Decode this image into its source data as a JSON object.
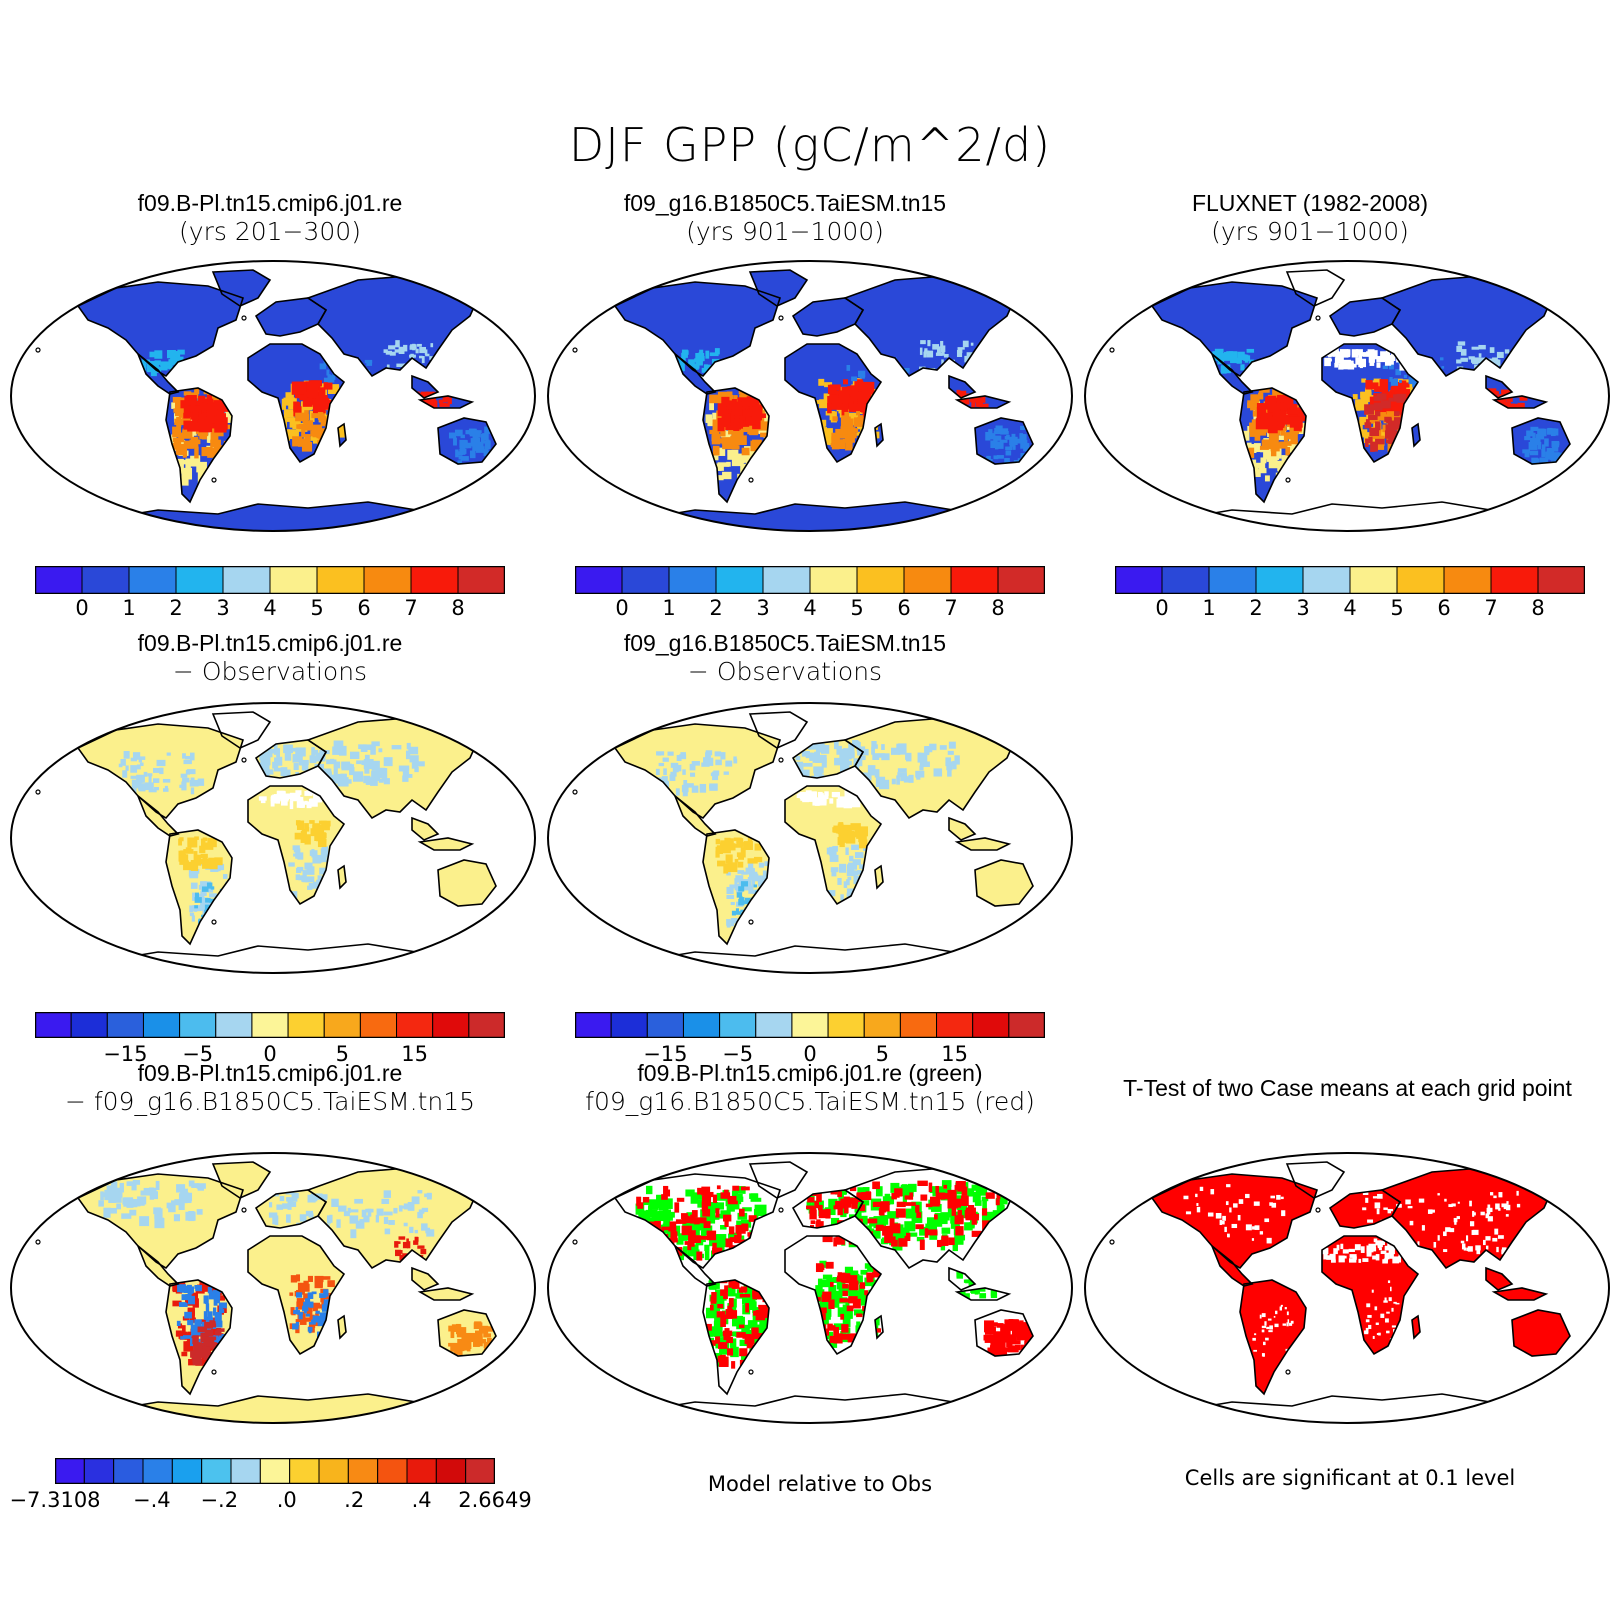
{
  "title": "DJF GPP (gC/m^2/d)",
  "palettes": {
    "abs": [
      "#3a1af0",
      "#2a48d8",
      "#2a80e8",
      "#22b4ee",
      "#a6d6f0",
      "#fbf08c",
      "#fbc020",
      "#f78a10",
      "#f81a0a",
      "#d22a28"
    ],
    "diff": [
      "#3a1af0",
      "#1c2ed8",
      "#2a60dc",
      "#1a90e8",
      "#4cbcee",
      "#a6d6f0",
      "#fcf598",
      "#fcd030",
      "#f8a81c",
      "#f86a10",
      "#f42810",
      "#e00a0a",
      "#cc2a2a"
    ],
    "bias": [
      "#3a1af0",
      "#2a30e0",
      "#2a5ce0",
      "#2a80e8",
      "#1aa0ee",
      "#4cc2ee",
      "#a6d6f0",
      "#fcf598",
      "#fcd030",
      "#f8b41c",
      "#f88a14",
      "#f45410",
      "#e81a0c",
      "#d20a0a",
      "#cc2a2a"
    ],
    "land_blue": "#2a48d8",
    "land_lightblue": "#a6d6f0",
    "land_yellow": "#fbf08c",
    "green": "#00ff00",
    "red": "#ff0000"
  },
  "panels": [
    {
      "line1": "f09.B-Pl.tn15.cmip6.j01.re",
      "line2": "(yrs 201−300)",
      "map": "abs_model1",
      "colorbar": "abs",
      "ticks": [
        "0",
        "1",
        "2",
        "3",
        "4",
        "5",
        "6",
        "7",
        "8"
      ]
    },
    {
      "line1": "f09_g16.B1850C5.TaiESM.tn15",
      "line2": "(yrs 901−1000)",
      "map": "abs_model2",
      "colorbar": "abs",
      "ticks": [
        "0",
        "1",
        "2",
        "3",
        "4",
        "5",
        "6",
        "7",
        "8"
      ]
    },
    {
      "line1": "FLUXNET (1982-2008)",
      "line2": "(yrs 901−1000)",
      "map": "abs_obs",
      "colorbar": "abs",
      "ticks": [
        "0",
        "1",
        "2",
        "3",
        "4",
        "5",
        "6",
        "7",
        "8"
      ]
    },
    {
      "line1": "f09.B-Pl.tn15.cmip6.j01.re",
      "line2": "− Observations",
      "map": "diff1",
      "colorbar": "diff",
      "ticks": [
        "−15",
        "−5",
        "0",
        "5",
        "15"
      ]
    },
    {
      "line1": "f09_g16.B1850C5.TaiESM.tn15",
      "line2": "− Observations",
      "map": "diff2",
      "colorbar": "diff",
      "ticks": [
        "−15",
        "−5",
        "0",
        "5",
        "15"
      ]
    },
    {
      "line1": "f09.B-Pl.tn15.cmip6.j01.re",
      "line2": "− f09_g16.B1850C5.TaiESM.tn15",
      "map": "bias",
      "colorbar": "bias",
      "ticks": [
        "−7.3108",
        "−.4",
        "−.2",
        ".0",
        ".2",
        ".4",
        "2.6649"
      ]
    },
    {
      "line1": "f09.B-Pl.tn15.cmip6.j01.re (green)",
      "line2": "f09_g16.B1850C5.TaiESM.tn15 (red)",
      "map": "greenred",
      "note": "Model relative to Obs"
    },
    {
      "line1": "T-Test of two Case means at each grid point",
      "line2": "",
      "map": "ttest",
      "note": "Cells are significant at 0.1 level"
    }
  ]
}
